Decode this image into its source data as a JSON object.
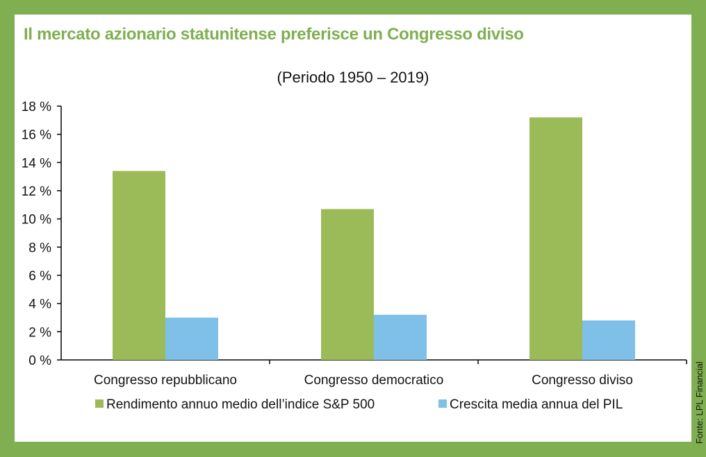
{
  "title": "Il mercato azionario statunitense preferisce un Congresso diviso",
  "source": "Fonte: LPL Financial",
  "colors": {
    "border": "#7faf50",
    "title": "#7faf50",
    "series_sp500": "#9bbb59",
    "series_pil": "#7fc0e8"
  },
  "chart_data": {
    "type": "bar",
    "subtitle": "(Periodo 1950 – 2019)",
    "categories": [
      "Congresso repubblicano",
      "Congresso democratico",
      "Congresso diviso"
    ],
    "series": [
      {
        "name": "Rendimento annuo medio dell’indice S&P 500",
        "values": [
          13.4,
          10.7,
          17.2
        ]
      },
      {
        "name": "Crescita media annua del PIL",
        "values": [
          3.0,
          3.2,
          2.8
        ]
      }
    ],
    "yticks": [
      "0 %",
      "2 %",
      "4 %",
      "6 %",
      "8 %",
      "10 %",
      "12 %",
      "14 %",
      "16 %",
      "18 %"
    ],
    "ylim": [
      0,
      18
    ],
    "grid": false,
    "legend_position": "bottom"
  }
}
